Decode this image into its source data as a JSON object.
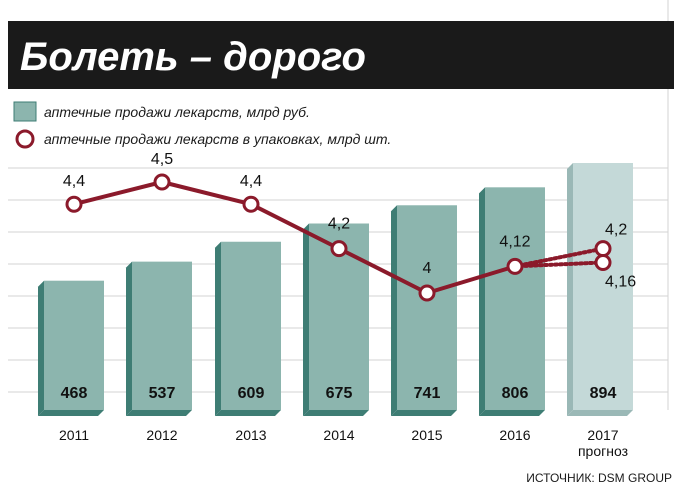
{
  "title": "Болеть – дорого",
  "legend": {
    "bars_label": "аптечные продажи лекарств, млрд руб.",
    "line_label": "аптечные продажи лекарств в упаковках, млрд шт."
  },
  "source": "ИСТОЧНИК: DSM GROUP",
  "colors": {
    "bar": "#8cb5ae",
    "bar_dark": "#3e7d74",
    "bar_forecast": "#c4d9d8",
    "line": "#8b1a2b",
    "grid": "#d3d3d3",
    "title_bg": "#1a1a1a"
  },
  "chart_data": {
    "type": "bar",
    "categories": [
      "2011",
      "2012",
      "2013",
      "2014",
      "2015",
      "2016",
      "2017"
    ],
    "category_note": "прогноз",
    "forecast_category": "2017",
    "series": [
      {
        "name": "аптечные продажи лекарств, млрд руб.",
        "type": "bar",
        "values": [
          468,
          537,
          609,
          675,
          741,
          806,
          894
        ],
        "labels": [
          "468",
          "537",
          "609",
          "675",
          "741",
          "806",
          "894"
        ]
      },
      {
        "name": "аптечные продажи лекарств в упаковках, млрд шт.",
        "type": "line",
        "values": [
          4.4,
          4.5,
          4.4,
          4.2,
          4.0,
          4.12,
          null
        ],
        "labels": [
          "4,4",
          "4,5",
          "4,4",
          "4,2",
          "4",
          "4,12",
          ""
        ]
      }
    ],
    "forecast_points": [
      {
        "value": 4.2,
        "label": "4,2"
      },
      {
        "value": 4.16,
        "label": "4,16"
      }
    ],
    "grid": true
  }
}
